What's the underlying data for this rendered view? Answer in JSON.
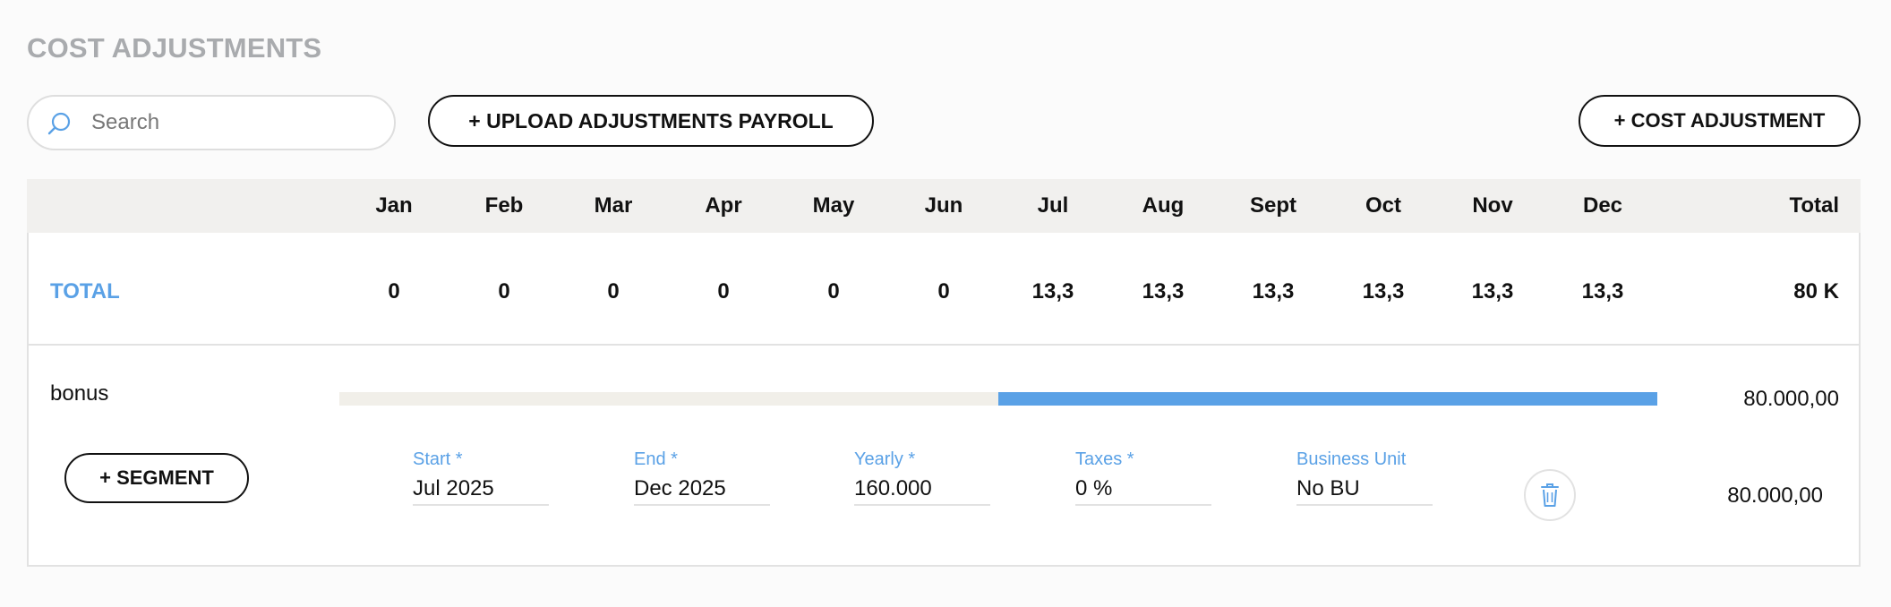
{
  "section_title": "COST ADJUSTMENTS",
  "search": {
    "placeholder": "Search",
    "value": ""
  },
  "toolbar": {
    "upload_label": "+ UPLOAD ADJUSTMENTS PAYROLL",
    "cost_adjustment_label": "+ COST ADJUSTMENT"
  },
  "table": {
    "months": [
      "Jan",
      "Feb",
      "Mar",
      "Apr",
      "May",
      "Jun",
      "Jul",
      "Aug",
      "Sept",
      "Oct",
      "Nov",
      "Dec"
    ],
    "total_header": "Total",
    "total_row": {
      "label": "TOTAL",
      "values": [
        "0",
        "0",
        "0",
        "0",
        "0",
        "0",
        "13,3",
        "13,3",
        "13,3",
        "13,3",
        "13,3",
        "13,3"
      ],
      "total": "80 K"
    },
    "adjustment": {
      "name": "bonus",
      "active_months": {
        "start": "Jul",
        "end": "Dec"
      },
      "total": "80.000,00",
      "segment_button": "+ SEGMENT",
      "segment": {
        "start": {
          "label": "Start *",
          "value": "Jul 2025"
        },
        "end": {
          "label": "End *",
          "value": "Dec 2025"
        },
        "yearly": {
          "label": "Yearly *",
          "value": "160.000"
        },
        "taxes": {
          "label": "Taxes *",
          "value": "0 %"
        },
        "business_unit": {
          "label": "Business Unit",
          "value": "No BU"
        },
        "total": "80.000,00"
      }
    }
  },
  "icons": {
    "search": "search-icon",
    "delete": "trash-icon"
  },
  "colors": {
    "accent": "#5aa1e6",
    "title_gray": "#a9abae",
    "header_bg": "#f1f0ee",
    "bar_track": "#f1efe9"
  }
}
